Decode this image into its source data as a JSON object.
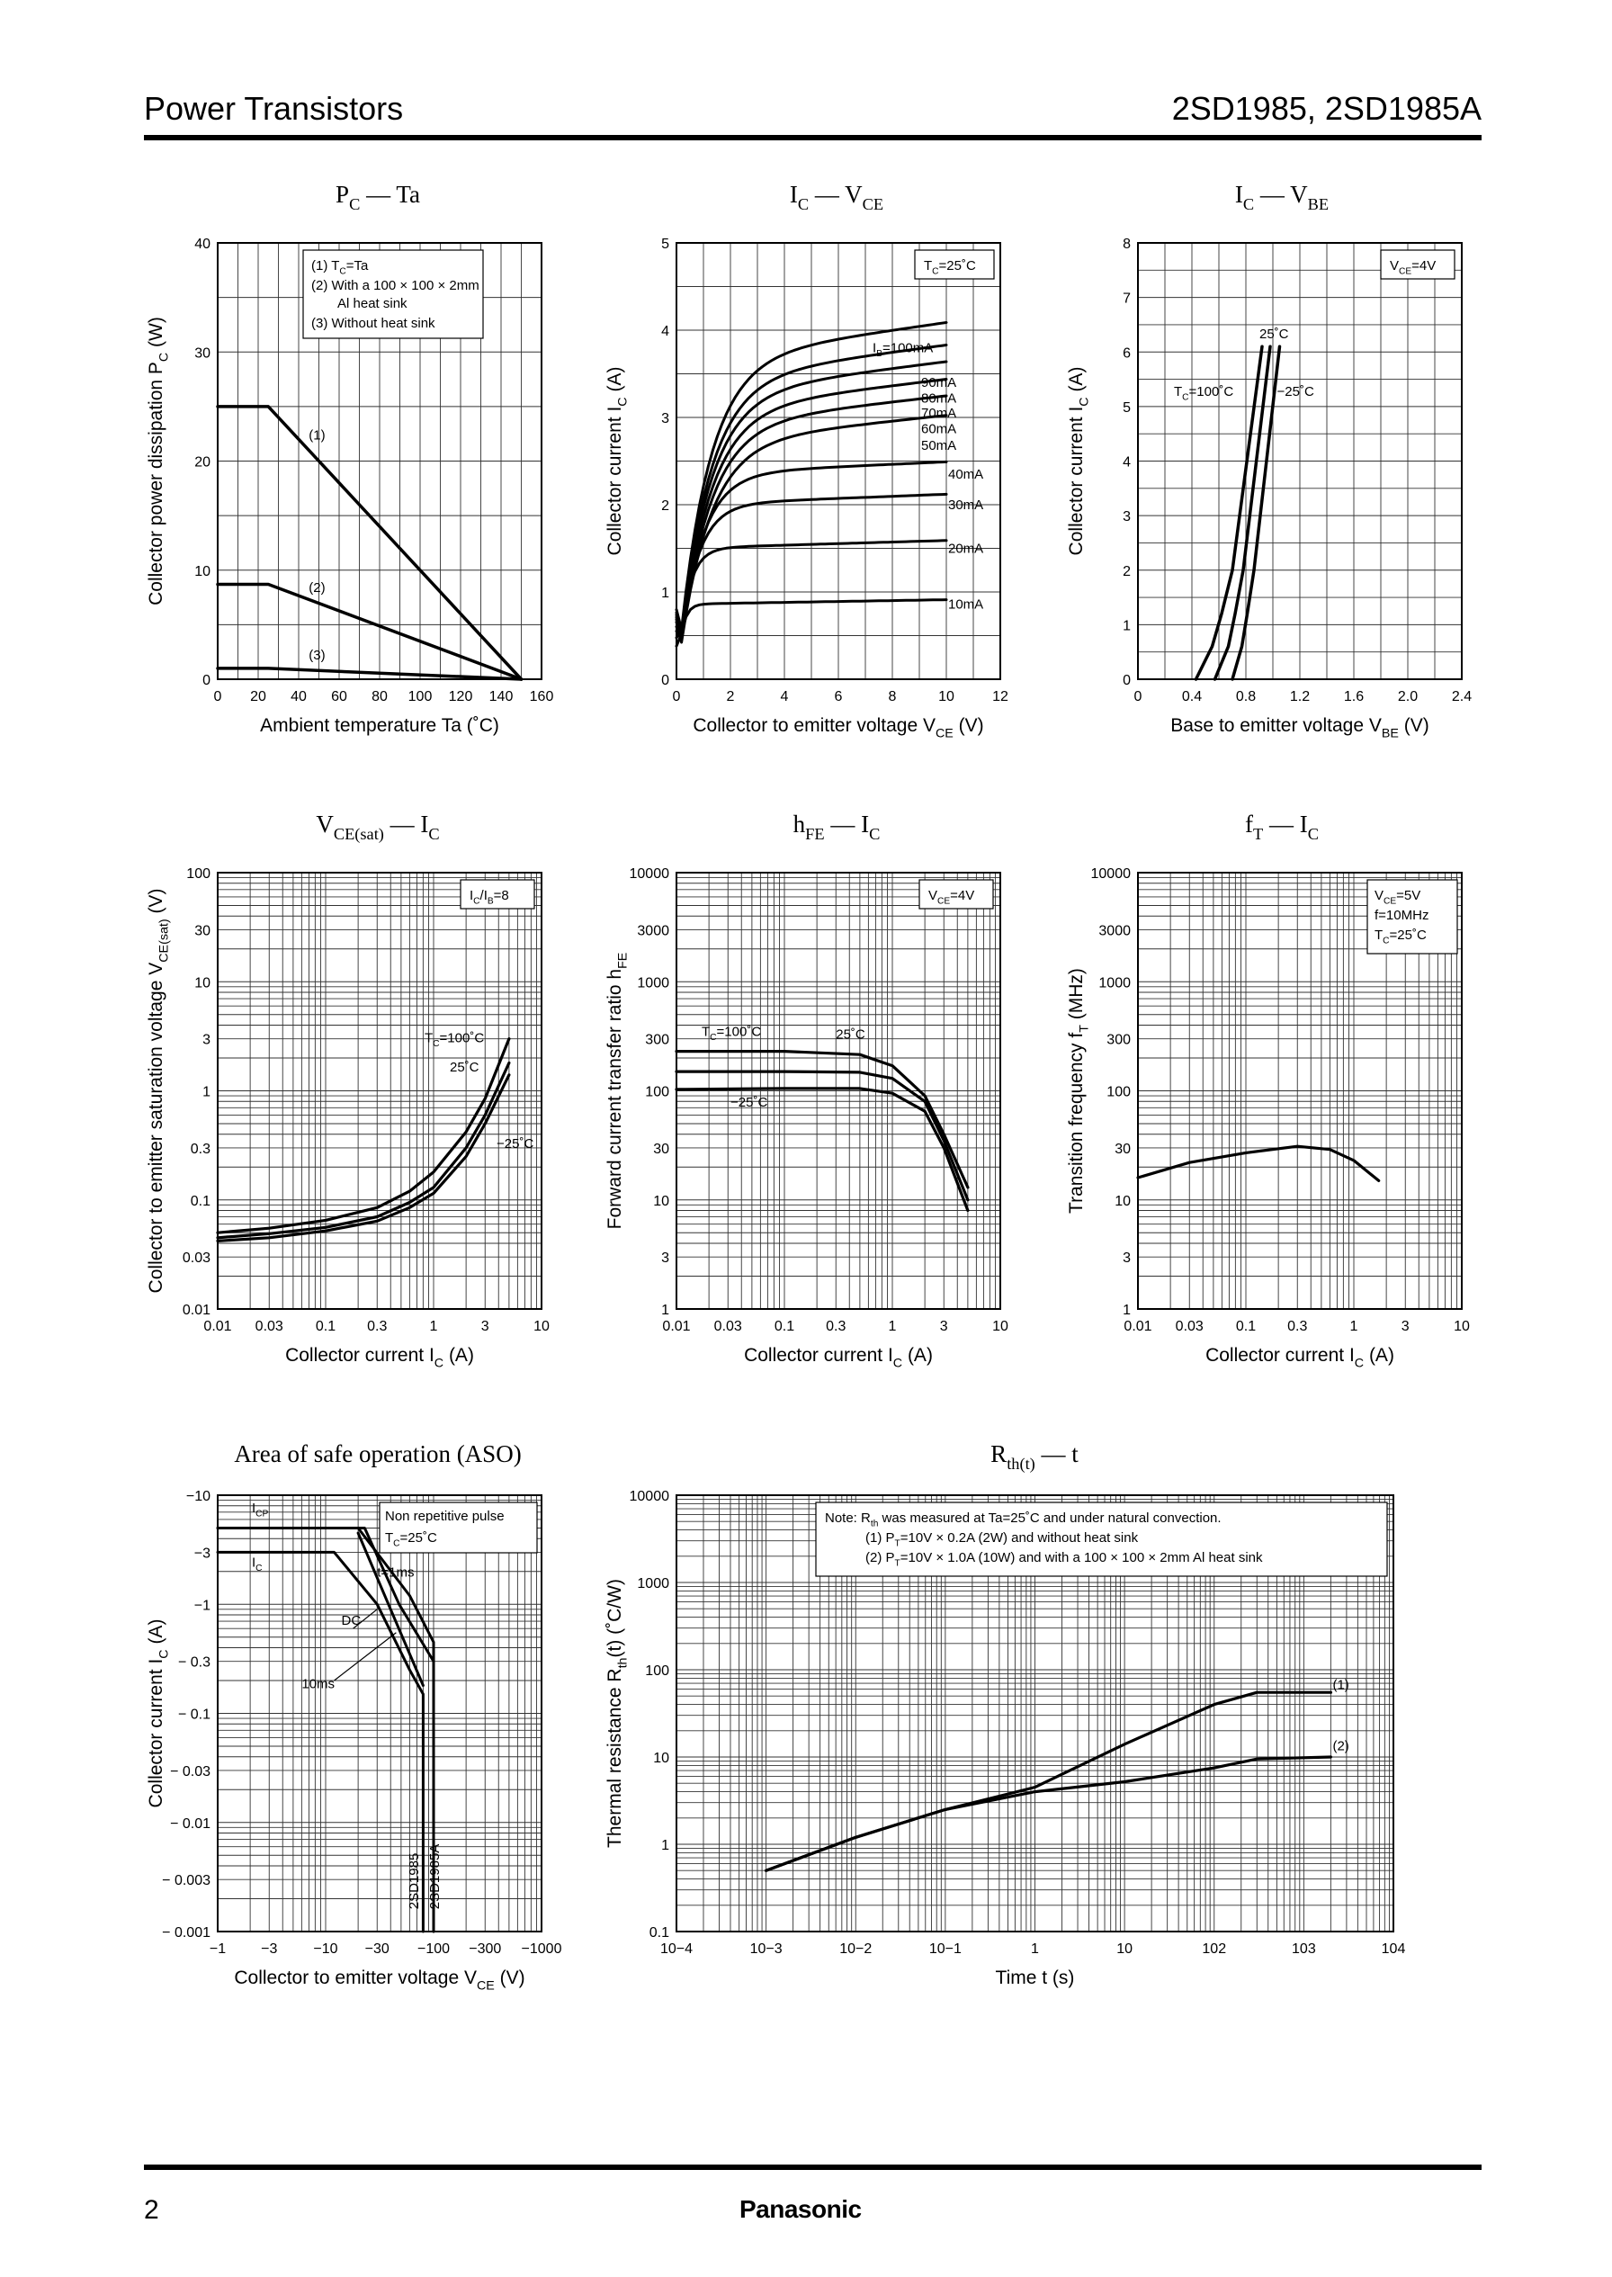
{
  "header": {
    "left_title": "Power Transistors",
    "right_title": "2SD1985, 2SD1985A"
  },
  "footer": {
    "page_number": "2",
    "brand": "Panasonic"
  },
  "chart_data": [
    {
      "id": "pc_ta",
      "type": "line",
      "title_main": "P",
      "title_sub": "C",
      "title_tail": " — Ta",
      "xlabel": "Ambient temperature   Ta  (˚C)",
      "ylabel": "Collector power dissipation   P",
      "ylabel_sub": "C",
      "ylabel_tail": "  (W)",
      "xlim": [
        0,
        160
      ],
      "ylim": [
        0,
        40
      ],
      "xticks": [
        0,
        20,
        40,
        60,
        80,
        100,
        120,
        140,
        160
      ],
      "xticklabels": [
        "0",
        "20",
        "40",
        "60",
        "80",
        "100",
        "120",
        "140",
        "160"
      ],
      "yticks": [
        0,
        10,
        20,
        30,
        40
      ],
      "yticklabels": [
        "0",
        "10",
        "20",
        "30",
        "40"
      ],
      "xgrid": [
        10,
        20,
        30,
        40,
        50,
        60,
        70,
        80,
        90,
        100,
        110,
        120,
        130,
        140,
        150
      ],
      "ygrid": [
        5,
        10,
        15,
        20,
        25,
        30,
        35
      ],
      "legend": [
        "(1) TC=Ta",
        "(2) With a 100 × 100 × 2mm",
        "Al heat sink",
        "(3) Without heat sink"
      ],
      "series": [
        {
          "name": "(1)",
          "x": [
            0,
            25,
            150
          ],
          "y": [
            25,
            25,
            0
          ],
          "label_at": [
            45,
            22
          ]
        },
        {
          "name": "(2)",
          "x": [
            0,
            25,
            150
          ],
          "y": [
            8.7,
            8.7,
            0
          ],
          "label_at": [
            45,
            8
          ]
        },
        {
          "name": "(3)",
          "x": [
            0,
            25,
            150
          ],
          "y": [
            1,
            1,
            0
          ],
          "label_at": [
            45,
            1.8
          ]
        }
      ]
    },
    {
      "id": "ic_vce",
      "type": "line",
      "title_main": "I",
      "title_sub": "C",
      "title_tail": " — V",
      "title_sub2": "CE",
      "xlabel": "Collector to emitter voltage   V",
      "xlabel_sub": "CE",
      "xlabel_tail": "   (V)",
      "ylabel": "Collector current   I",
      "ylabel_sub": "C",
      "ylabel_tail": "  (A)",
      "xlim": [
        0,
        12
      ],
      "ylim": [
        0,
        5
      ],
      "xticks": [
        0,
        2,
        4,
        6,
        8,
        10,
        12
      ],
      "xticklabels": [
        "0",
        "2",
        "4",
        "6",
        "8",
        "10",
        "12"
      ],
      "yticks": [
        0,
        1,
        2,
        3,
        4,
        5
      ],
      "yticklabels": [
        "0",
        "1",
        "2",
        "3",
        "4",
        "5"
      ],
      "xgrid": [
        1,
        2,
        3,
        4,
        5,
        6,
        7,
        8,
        9,
        10,
        11
      ],
      "ygrid": [
        0.5,
        1,
        1.5,
        2,
        2.5,
        3,
        3.5,
        4,
        4.5
      ],
      "condition": "TC=25˚C",
      "series": [
        {
          "name": "IB=100mA",
          "sat": 3.65,
          "k": 0.9,
          "p": 0.45
        },
        {
          "name": "90mA",
          "sat": 3.42,
          "k": 0.9,
          "p": 0.45
        },
        {
          "name": "80mA",
          "sat": 3.25,
          "k": 0.9,
          "p": 0.45
        },
        {
          "name": "70mA",
          "sat": 3.07,
          "k": 0.9,
          "p": 0.45
        },
        {
          "name": "60mA",
          "sat": 2.9,
          "k": 0.9,
          "p": 0.45
        },
        {
          "name": "50mA",
          "sat": 2.7,
          "k": 0.9,
          "p": 0.45
        },
        {
          "name": "40mA",
          "sat": 2.35,
          "k": 1.2,
          "p": 0.4
        },
        {
          "name": "30mA",
          "sat": 2.0,
          "k": 1.5,
          "p": 0.35
        },
        {
          "name": "20mA",
          "sat": 1.5,
          "k": 2.5,
          "p": 0.3
        },
        {
          "name": "10mA",
          "sat": 0.86,
          "k": 5,
          "p": 0.25
        }
      ]
    },
    {
      "id": "ic_vbe",
      "type": "line",
      "title_main": "I",
      "title_sub": "C",
      "title_tail": " — V",
      "title_sub2": "BE",
      "xlabel": "Base to emitter voltage   V",
      "xlabel_sub": "BE",
      "xlabel_tail": "   (V)",
      "ylabel": "Collector current   I",
      "ylabel_sub": "C",
      "ylabel_tail": "  (A)",
      "xlim": [
        0,
        2.4
      ],
      "ylim": [
        0,
        8
      ],
      "xticks": [
        0,
        0.4,
        0.8,
        1.2,
        1.6,
        2.0,
        2.4
      ],
      "xticklabels": [
        "0",
        "0.4",
        "0.8",
        "1.2",
        "1.6",
        "2.0",
        "2.4"
      ],
      "yticks": [
        0,
        1,
        2,
        3,
        4,
        5,
        6,
        7,
        8
      ],
      "yticklabels": [
        "0",
        "1",
        "2",
        "3",
        "4",
        "5",
        "6",
        "7",
        "8"
      ],
      "xgrid": [
        0.2,
        0.4,
        0.6,
        0.8,
        1.0,
        1.2,
        1.4,
        1.6,
        1.8,
        2.0,
        2.2
      ],
      "ygrid": [
        0.5,
        1,
        1.5,
        2,
        2.5,
        3,
        3.5,
        4,
        4.5,
        5,
        5.5,
        6,
        6.5,
        7,
        7.5
      ],
      "condition": "VCE=4V",
      "series": [
        {
          "name": "TC=100˚C",
          "x": [
            0.43,
            0.55,
            0.62,
            0.7,
            0.92
          ],
          "y": [
            0,
            0.6,
            1.2,
            2.0,
            6.1
          ]
        },
        {
          "name": "25˚C",
          "x": [
            0.57,
            0.67,
            0.72,
            0.78,
            0.98
          ],
          "y": [
            0,
            0.6,
            1.2,
            2.0,
            6.1
          ]
        },
        {
          "name": "−25˚C",
          "x": [
            0.7,
            0.77,
            0.81,
            0.86,
            1.05
          ],
          "y": [
            0,
            0.6,
            1.2,
            2.0,
            6.1
          ]
        }
      ]
    },
    {
      "id": "vcesat_ic",
      "type": "line",
      "title_main": "V",
      "title_sub": "CE(sat)",
      "title_tail": " — I",
      "title_sub2": "C",
      "xlabel": "Collector current   I",
      "xlabel_sub": "C",
      "xlabel_tail": "  (A)",
      "ylabel": "Collector to emitter saturation voltage   V",
      "ylabel_sub": "CE(sat)",
      "ylabel_tail": "  (V)",
      "xscale": "log",
      "yscale": "log",
      "xlim": [
        0.01,
        10
      ],
      "ylim": [
        0.01,
        100
      ],
      "xticks": [
        0.01,
        0.03,
        0.1,
        0.3,
        1,
        3,
        10
      ],
      "xticklabels": [
        "0.01",
        "0.03",
        "0.1",
        "0.3",
        "1",
        "3",
        "10"
      ],
      "yticks": [
        0.01,
        0.03,
        0.1,
        0.3,
        1,
        3,
        10,
        30,
        100
      ],
      "yticklabels": [
        "0.01",
        "0.03",
        "0.1",
        "0.3",
        "1",
        "3",
        "10",
        "30",
        "100"
      ],
      "condition": "IC/IB=8",
      "series": [
        {
          "name": "TC=100˚C",
          "x": [
            0.01,
            0.03,
            0.1,
            0.3,
            0.6,
            1,
            2,
            3,
            5
          ],
          "y": [
            0.05,
            0.055,
            0.065,
            0.085,
            0.12,
            0.18,
            0.42,
            0.85,
            3.0
          ]
        },
        {
          "name": "25˚C",
          "x": [
            0.01,
            0.03,
            0.1,
            0.3,
            0.6,
            1,
            2,
            3,
            5
          ],
          "y": [
            0.045,
            0.049,
            0.056,
            0.07,
            0.095,
            0.13,
            0.3,
            0.6,
            1.8
          ]
        },
        {
          "name": "−25˚C",
          "x": [
            0.01,
            0.03,
            0.1,
            0.3,
            0.6,
            1,
            2,
            3,
            5
          ],
          "y": [
            0.042,
            0.045,
            0.052,
            0.064,
            0.085,
            0.115,
            0.25,
            0.5,
            1.4
          ]
        }
      ]
    },
    {
      "id": "hfe_ic",
      "type": "line",
      "title_main": "h",
      "title_sub": "FE",
      "title_tail": " — I",
      "title_sub2": "C",
      "xlabel": "Collector current   I",
      "xlabel_sub": "C",
      "xlabel_tail": "  (A)",
      "ylabel": "Forward current transfer ratio   h",
      "ylabel_sub": "FE",
      "xscale": "log",
      "yscale": "log",
      "xlim": [
        0.01,
        10
      ],
      "ylim": [
        1,
        10000
      ],
      "xticks": [
        0.01,
        0.03,
        0.1,
        0.3,
        1,
        3,
        10
      ],
      "xticklabels": [
        "0.01",
        "0.03",
        "0.1",
        "0.3",
        "1",
        "3",
        "10"
      ],
      "yticks": [
        1,
        3,
        10,
        30,
        100,
        300,
        1000,
        3000,
        10000
      ],
      "yticklabels": [
        "1",
        "3",
        "10",
        "30",
        "100",
        "300",
        "1000",
        "3000",
        "10000"
      ],
      "condition": "VCE=4V",
      "series": [
        {
          "name": "TC=100˚C",
          "x": [
            0.01,
            0.1,
            0.5,
            1,
            2,
            3,
            5
          ],
          "y": [
            230,
            230,
            215,
            170,
            90,
            40,
            13
          ]
        },
        {
          "name": "25˚C",
          "x": [
            0.01,
            0.1,
            0.5,
            1,
            2,
            3,
            5
          ],
          "y": [
            150,
            150,
            148,
            130,
            80,
            35,
            10
          ]
        },
        {
          "name": "−25˚C",
          "x": [
            0.01,
            0.1,
            0.5,
            1,
            2,
            3,
            5
          ],
          "y": [
            103,
            105,
            105,
            95,
            65,
            30,
            8
          ]
        }
      ]
    },
    {
      "id": "ft_ic",
      "type": "line",
      "title_main": "f",
      "title_sub": "T",
      "title_tail": " — I",
      "title_sub2": "C",
      "xlabel": "Collector current   I",
      "xlabel_sub": "C",
      "xlabel_tail": "  (A)",
      "ylabel": "Transition frequency   f",
      "ylabel_sub": "T",
      "ylabel_tail": "  (MHz)",
      "xscale": "log",
      "yscale": "log",
      "xlim": [
        0.01,
        10
      ],
      "ylim": [
        1,
        10000
      ],
      "xticks": [
        0.01,
        0.03,
        0.1,
        0.3,
        1,
        3,
        10
      ],
      "xticklabels": [
        "0.01",
        "0.03",
        "0.1",
        "0.3",
        "1",
        "3",
        "10"
      ],
      "yticks": [
        1,
        3,
        10,
        30,
        100,
        300,
        1000,
        3000,
        10000
      ],
      "yticklabels": [
        "1",
        "3",
        "10",
        "30",
        "100",
        "300",
        "1000",
        "3000",
        "10000"
      ],
      "condition": [
        "VCE=5V",
        "f=10MHz",
        "TC=25˚C"
      ],
      "series": [
        {
          "name": "fT",
          "x": [
            0.01,
            0.03,
            0.1,
            0.3,
            0.6,
            1,
            1.7
          ],
          "y": [
            16,
            22,
            27,
            31,
            29,
            23,
            15
          ]
        }
      ]
    },
    {
      "id": "aso",
      "type": "line",
      "title_main": "Area of safe operation (ASO)",
      "xlabel": "Collector to emitter voltage   V",
      "xlabel_sub": "CE",
      "xlabel_tail": "   (V)",
      "ylabel": "Collector current   I",
      "ylabel_sub": "C",
      "ylabel_tail": "  (A)",
      "xscale": "log",
      "yscale": "log",
      "xlim": [
        1,
        1000
      ],
      "ylim": [
        0.001,
        10
      ],
      "xticks": [
        1,
        3,
        10,
        30,
        100,
        300,
        1000
      ],
      "xticklabels": [
        "−1",
        "−3",
        "−10",
        "−30",
        "−100",
        "−300",
        "−1000"
      ],
      "yticks": [
        0.001,
        0.003,
        0.01,
        0.03,
        0.1,
        0.3,
        1,
        3,
        10
      ],
      "yticklabels": [
        "− 0.001",
        "− 0.003",
        "− 0.01",
        "− 0.03",
        "− 0.1",
        "− 0.3",
        "−1",
        "−3",
        "−10"
      ],
      "legend": [
        "Non repetitive pulse",
        "TC=25˚C"
      ],
      "labels": [
        "ICP",
        "IC",
        "t=1ms",
        "DC",
        "10ms",
        "2SD1985",
        "2SD1985A"
      ],
      "series": [
        {
          "name": "ICP",
          "x": [
            1,
            20,
            60,
            100,
            100
          ],
          "y": [
            5,
            5,
            1.2,
            0.45,
            0.001
          ]
        },
        {
          "name": "t=1ms",
          "x": [
            1,
            23,
            48,
            100,
            100
          ],
          "y": [
            5,
            5,
            1.0,
            0.3,
            0.001
          ]
        },
        {
          "name": "IC",
          "x": [
            1,
            12,
            30,
            60,
            80,
            80
          ],
          "y": [
            3,
            3,
            1.0,
            0.25,
            0.15,
            0.001
          ]
        },
        {
          "name": "DC",
          "x": [
            20,
            40,
            80
          ],
          "y": [
            4.5,
            0.9,
            0.18
          ]
        }
      ]
    },
    {
      "id": "rth_t",
      "type": "line",
      "title_main": "R",
      "title_sub": "th(t)",
      "title_tail": " — t",
      "xlabel": "Time   t   (s)",
      "ylabel": "Thermal resistance   R",
      "ylabel_sub": "th",
      "ylabel_tail": "(t)   (˚C/W)",
      "xscale": "log",
      "yscale": "log",
      "xlim": [
        0.0001,
        10000
      ],
      "ylim": [
        0.1,
        10000
      ],
      "xticks": [
        0.0001,
        0.001,
        0.01,
        0.1,
        1,
        10,
        100,
        1000,
        10000
      ],
      "xticklabels": [
        "10−4",
        "10−3",
        "10−2",
        "10−1",
        "1",
        "10",
        "102",
        "103",
        "104"
      ],
      "yticks": [
        0.1,
        1,
        10,
        100,
        1000,
        10000
      ],
      "yticklabels": [
        "0.1",
        "1",
        "10",
        "100",
        "1000",
        "10000"
      ],
      "note": [
        "Note: Rth was measured at Ta=25˚C and under natural convection.",
        "(1) PT=10V × 0.2A (2W) and without heat sink",
        "(2) PT=10V × 1.0A (10W) and with a 100 × 100 × 2mm Al heat sink"
      ],
      "series": [
        {
          "name": "(1)",
          "x": [
            0.001,
            0.01,
            0.1,
            1,
            10,
            100,
            300,
            2000
          ],
          "y": [
            0.5,
            1.2,
            2.5,
            4.5,
            14,
            40,
            55,
            55
          ]
        },
        {
          "name": "(2)",
          "x": [
            0.001,
            0.01,
            0.1,
            1,
            10,
            100,
            300,
            2000
          ],
          "y": [
            0.5,
            1.2,
            2.5,
            4.0,
            5.2,
            7.5,
            9.5,
            10
          ]
        }
      ]
    }
  ]
}
